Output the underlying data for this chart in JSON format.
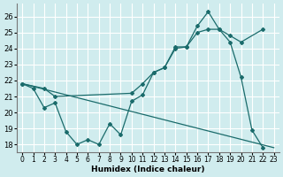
{
  "xlabel": "Humidex (Indice chaleur)",
  "bg_color": "#d0ecee",
  "line_color": "#1a6b6b",
  "grid_color": "#ffffff",
  "xlim": [
    -0.5,
    23.5
  ],
  "ylim": [
    17.5,
    26.8
  ],
  "xticks": [
    0,
    1,
    2,
    3,
    4,
    5,
    6,
    7,
    8,
    9,
    10,
    11,
    12,
    13,
    14,
    15,
    16,
    17,
    18,
    19,
    20,
    21,
    22,
    23
  ],
  "yticks": [
    18,
    19,
    20,
    21,
    22,
    23,
    24,
    25,
    26
  ],
  "line1_x": [
    0,
    1,
    2,
    3,
    4,
    5,
    6,
    7,
    8,
    9,
    10,
    11,
    12,
    13,
    14,
    15,
    16,
    17,
    18,
    19,
    20,
    21,
    22
  ],
  "line1_y": [
    21.8,
    21.5,
    20.3,
    20.6,
    18.8,
    18.0,
    18.3,
    18.0,
    19.3,
    18.6,
    20.7,
    21.1,
    22.5,
    22.8,
    24.1,
    24.1,
    25.4,
    26.3,
    25.2,
    24.4,
    22.2,
    18.9,
    17.8
  ],
  "line2_x": [
    0,
    2,
    3,
    10,
    11,
    12,
    13,
    14,
    15,
    16,
    17,
    18,
    19,
    20,
    22
  ],
  "line2_y": [
    21.8,
    21.5,
    21.0,
    21.2,
    21.8,
    22.5,
    22.8,
    24.0,
    24.1,
    25.0,
    25.2,
    25.2,
    24.8,
    24.4,
    25.2
  ],
  "line3_x": [
    0,
    23
  ],
  "line3_y": [
    21.8,
    17.8
  ]
}
